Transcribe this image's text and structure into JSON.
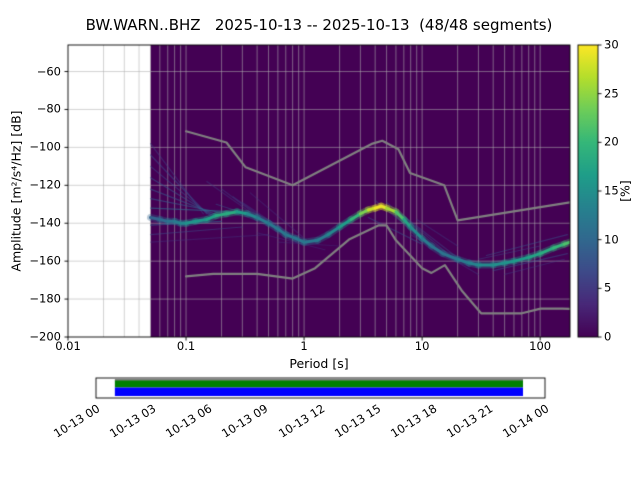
{
  "chart_data": {
    "type": "heatmap",
    "title": "BW.WARN..BHZ   2025-10-13 -- 2025-10-13  (48/48 segments)",
    "xlabel": "Period [s]",
    "ylabel": "Amplitude [m²/s⁴/Hz] [dB]",
    "x_scale": "log",
    "xlim": [
      0.01,
      179
    ],
    "ylim": [
      -200,
      -46
    ],
    "grid": true,
    "background_color": "#440154",
    "data_period_range": [
      0.05,
      179
    ],
    "x_ticks": [
      {
        "v": 0.01,
        "label": "0.01"
      },
      {
        "v": 0.1,
        "label": "0.1"
      },
      {
        "v": 1,
        "label": "1"
      },
      {
        "v": 10,
        "label": "10"
      },
      {
        "v": 100,
        "label": "100"
      }
    ],
    "y_ticks": [
      {
        "v": -60,
        "label": "−60"
      },
      {
        "v": -80,
        "label": "−80"
      },
      {
        "v": -100,
        "label": "−100"
      },
      {
        "v": -120,
        "label": "−120"
      },
      {
        "v": -140,
        "label": "−140"
      },
      {
        "v": -160,
        "label": "−160"
      },
      {
        "v": -180,
        "label": "−180"
      },
      {
        "v": -200,
        "label": "−200"
      }
    ],
    "colorbar": {
      "label": "[%]",
      "min": 0,
      "max": 30,
      "ticks": [
        {
          "v": 0,
          "label": "0"
        },
        {
          "v": 5,
          "label": "5"
        },
        {
          "v": 10,
          "label": "10"
        },
        {
          "v": 15,
          "label": "15"
        },
        {
          "v": 20,
          "label": "20"
        },
        {
          "v": 25,
          "label": "25"
        },
        {
          "v": 30,
          "label": "30"
        }
      ],
      "colormap": "viridis",
      "stops": [
        "#440154",
        "#482878",
        "#3e4a89",
        "#31688e",
        "#26828e",
        "#1f9e89",
        "#35b779",
        "#6dcd59",
        "#b4de2c",
        "#fde725"
      ]
    },
    "noise_models": {
      "color": "#808080",
      "nhnm": [
        [
          0.1,
          -91.5
        ],
        [
          0.22,
          -97.4
        ],
        [
          0.32,
          -110.5
        ],
        [
          0.8,
          -120.0
        ],
        [
          3.8,
          -98.0
        ],
        [
          4.6,
          -96.5
        ],
        [
          6.3,
          -101.0
        ],
        [
          7.9,
          -113.5
        ],
        [
          15.4,
          -120.0
        ],
        [
          20.0,
          -138.5
        ],
        [
          179.0,
          -129.0
        ]
      ],
      "nlnm": [
        [
          0.1,
          -168.0
        ],
        [
          0.17,
          -166.7
        ],
        [
          0.4,
          -166.7
        ],
        [
          0.8,
          -169.2
        ],
        [
          1.24,
          -163.7
        ],
        [
          2.4,
          -148.6
        ],
        [
          4.3,
          -141.1
        ],
        [
          5.0,
          -141.1
        ],
        [
          6.0,
          -149.0
        ],
        [
          10.0,
          -163.8
        ],
        [
          12.0,
          -166.2
        ],
        [
          15.6,
          -162.1
        ],
        [
          21.9,
          -175.9
        ],
        [
          31.6,
          -187.5
        ],
        [
          45.0,
          -187.5
        ],
        [
          70.0,
          -187.5
        ],
        [
          101.0,
          -185.0
        ],
        [
          154.0,
          -185.0
        ],
        [
          179.0,
          -185.2
        ]
      ]
    },
    "mode_curve": [
      [
        0.05,
        -137,
        9
      ],
      [
        0.06,
        -138,
        10
      ],
      [
        0.07,
        -139,
        11
      ],
      [
        0.08,
        -139,
        12
      ],
      [
        0.09,
        -140,
        13
      ],
      [
        0.1,
        -140,
        15
      ],
      [
        0.12,
        -139,
        16
      ],
      [
        0.15,
        -138,
        16
      ],
      [
        0.18,
        -136,
        18
      ],
      [
        0.22,
        -135,
        19
      ],
      [
        0.27,
        -134,
        18
      ],
      [
        0.33,
        -135,
        15
      ],
      [
        0.4,
        -137,
        13
      ],
      [
        0.5,
        -140,
        12
      ],
      [
        0.6,
        -143,
        12
      ],
      [
        0.7,
        -146,
        12
      ],
      [
        0.85,
        -148,
        12
      ],
      [
        1.0,
        -150,
        12
      ],
      [
        1.3,
        -149,
        12
      ],
      [
        1.6,
        -146,
        13
      ],
      [
        2.0,
        -142,
        15
      ],
      [
        2.5,
        -138,
        18
      ],
      [
        3.0,
        -135,
        22
      ],
      [
        3.5,
        -133,
        26
      ],
      [
        4.0,
        -132,
        29
      ],
      [
        4.5,
        -131,
        30
      ],
      [
        5.0,
        -132,
        28
      ],
      [
        6.0,
        -134,
        24
      ],
      [
        7.0,
        -138,
        19
      ],
      [
        8.0,
        -142,
        16
      ],
      [
        10,
        -148,
        13
      ],
      [
        12,
        -152,
        12
      ],
      [
        15,
        -156,
        11
      ],
      [
        20,
        -159,
        12
      ],
      [
        25,
        -161,
        13
      ],
      [
        30,
        -162,
        14
      ],
      [
        40,
        -162,
        15
      ],
      [
        50,
        -161,
        15
      ],
      [
        60,
        -160,
        16
      ],
      [
        80,
        -158,
        17
      ],
      [
        100,
        -156,
        18
      ],
      [
        130,
        -153,
        19
      ],
      [
        160,
        -151,
        21
      ],
      [
        179,
        -150,
        22
      ]
    ],
    "spread_lines": [
      [
        0.05,
        -98,
        0.14,
        -135,
        6,
        0.5
      ],
      [
        0.05,
        -104,
        0.15,
        -135,
        7,
        0.55
      ],
      [
        0.05,
        -110,
        0.16,
        -136,
        7,
        0.55
      ],
      [
        0.05,
        -116,
        0.17,
        -136,
        8,
        0.6
      ],
      [
        0.05,
        -122,
        0.19,
        -136,
        8,
        0.6
      ],
      [
        0.05,
        -127,
        0.22,
        -135,
        9,
        0.6
      ],
      [
        0.05,
        -132,
        0.28,
        -134,
        10,
        0.65
      ],
      [
        0.05,
        -141,
        0.2,
        -139,
        9,
        0.6
      ],
      [
        0.05,
        -146,
        0.3,
        -142,
        7,
        0.5
      ],
      [
        0.05,
        -150,
        0.5,
        -146,
        5,
        0.4
      ],
      [
        0.15,
        -118,
        0.5,
        -141,
        6,
        0.45
      ],
      [
        0.2,
        -122,
        0.6,
        -144,
        6,
        0.45
      ],
      [
        0.25,
        -126,
        0.75,
        -147,
        6,
        0.45
      ],
      [
        0.3,
        -129,
        0.9,
        -149,
        6,
        0.45
      ],
      [
        0.35,
        -124,
        1.1,
        -150,
        5,
        0.4
      ],
      [
        0.18,
        -130,
        0.4,
        -137,
        8,
        0.5
      ],
      [
        0.4,
        -145,
        1.5,
        -154,
        5,
        0.4
      ],
      [
        0.6,
        -150,
        2.0,
        -152,
        5,
        0.35
      ],
      [
        4,
        -128,
        12,
        -152,
        7,
        0.5
      ],
      [
        5,
        -129,
        18,
        -158,
        7,
        0.5
      ],
      [
        6,
        -133,
        25,
        -163,
        7,
        0.45
      ],
      [
        3.5,
        -137,
        10,
        -151,
        8,
        0.5
      ],
      [
        8,
        -146,
        30,
        -167,
        6,
        0.4
      ],
      [
        9,
        -138,
        20,
        -152,
        6,
        0.4
      ],
      [
        35,
        -157,
        170,
        -146,
        8,
        0.5
      ],
      [
        40,
        -165,
        170,
        -156,
        8,
        0.5
      ],
      [
        50,
        -167,
        160,
        -159,
        6,
        0.4
      ],
      [
        30,
        -159,
        100,
        -152,
        7,
        0.45
      ]
    ],
    "timeline": {
      "labels": [
        "10-13 00",
        "10-13 03",
        "10-13 06",
        "10-13 09",
        "10-13 12",
        "10-13 15",
        "10-13 18",
        "10-13 21",
        "10-14 00"
      ],
      "coverage_fraction": [
        0.042,
        0.951
      ],
      "bar_top_color": "#008000",
      "bar_bottom_color": "#0000ff",
      "outline_color": "#000000"
    }
  }
}
